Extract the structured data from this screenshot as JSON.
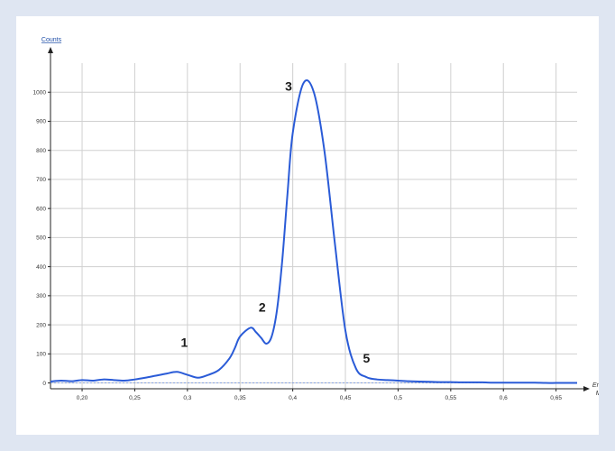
{
  "chart_data": {
    "type": "line",
    "xlabel": "Energy\nMeV",
    "ylabel": "Counts",
    "xlim": [
      0.17,
      0.67
    ],
    "ylim": [
      -20,
      1100
    ],
    "x_ticks": [
      0.2,
      0.25,
      0.3,
      0.35,
      0.4,
      0.45,
      0.5,
      0.55,
      0.6,
      0.65
    ],
    "x_tick_labels": [
      "0,20",
      "0,25",
      "0,3",
      "0,35",
      "0,4",
      "0,45",
      "0,5",
      "0,55",
      "0,6",
      "0,65"
    ],
    "y_ticks": [
      0,
      100,
      200,
      300,
      400,
      500,
      600,
      700,
      800,
      900,
      1000
    ],
    "y_tick_labels": [
      "0",
      "100",
      "200",
      "300",
      "400",
      "500",
      "600",
      "700",
      "800",
      "900",
      "1000"
    ],
    "grid": true,
    "series": [
      {
        "color": "#2a5bd7",
        "x": [
          0.17,
          0.18,
          0.19,
          0.2,
          0.21,
          0.22,
          0.23,
          0.24,
          0.25,
          0.26,
          0.27,
          0.28,
          0.29,
          0.3,
          0.31,
          0.32,
          0.33,
          0.34,
          0.345,
          0.35,
          0.36,
          0.365,
          0.37,
          0.375,
          0.38,
          0.385,
          0.39,
          0.395,
          0.4,
          0.41,
          0.42,
          0.43,
          0.44,
          0.45,
          0.46,
          0.47,
          0.48,
          0.49,
          0.5,
          0.51,
          0.52,
          0.53,
          0.54,
          0.55,
          0.56,
          0.57,
          0.58,
          0.59,
          0.6,
          0.61,
          0.62,
          0.63,
          0.64,
          0.65,
          0.66,
          0.67
        ],
        "y": [
          5,
          8,
          6,
          10,
          8,
          12,
          10,
          8,
          12,
          18,
          25,
          32,
          38,
          28,
          18,
          28,
          45,
          85,
          120,
          160,
          190,
          175,
          155,
          135,
          160,
          250,
          420,
          650,
          860,
          1030,
          1000,
          800,
          480,
          180,
          50,
          20,
          12,
          10,
          8,
          6,
          5,
          4,
          3,
          3,
          2,
          2,
          2,
          1,
          1,
          1,
          1,
          1,
          0,
          0,
          0,
          0
        ]
      }
    ],
    "annotations": [
      {
        "text": "1",
        "x": 0.297,
        "y": 125
      },
      {
        "text": "2",
        "x": 0.371,
        "y": 245
      },
      {
        "text": "3",
        "x": 0.396,
        "y": 1005
      },
      {
        "text": "5",
        "x": 0.47,
        "y": 70
      }
    ]
  }
}
